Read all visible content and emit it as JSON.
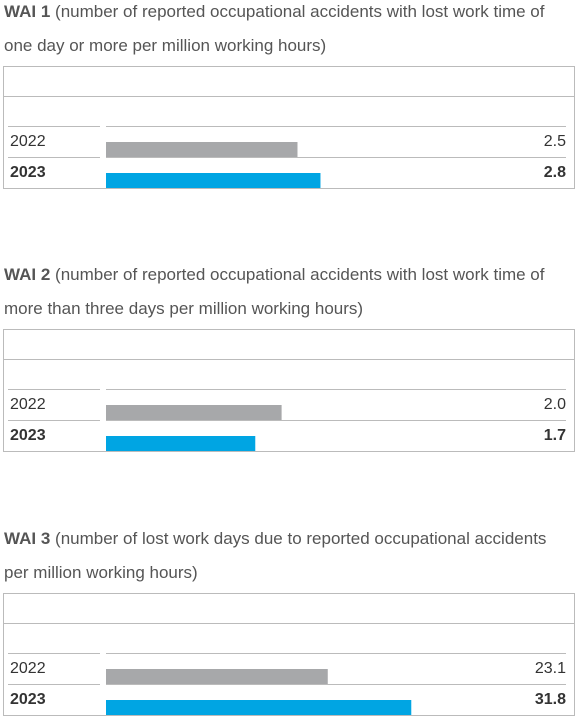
{
  "chart_data": [
    {
      "type": "bar",
      "title": "WAI 1",
      "subtitle": "(number of reported occupational accidents with lost work time of one day or more per million working hours)",
      "categories": [
        "2022",
        "2023"
      ],
      "values": [
        2.5,
        2.8
      ],
      "value_labels": [
        "2.5",
        "2.8"
      ],
      "colors": [
        "#a7a8aa",
        "#00a5e3"
      ],
      "xlim": [
        0,
        4.7
      ]
    },
    {
      "type": "bar",
      "title": "WAI 2",
      "subtitle": "(number of reported occupational accidents with lost work time of more than three days per million working hours)",
      "categories": [
        "2022",
        "2023"
      ],
      "values": [
        2.0,
        1.7
      ],
      "value_labels": [
        "2.0",
        "1.7"
      ],
      "colors": [
        "#a7a8aa",
        "#00a5e3"
      ],
      "xlim": [
        0,
        4.1
      ]
    },
    {
      "type": "bar",
      "title": "WAI 3",
      "subtitle": "(number of lost work days due to reported occupational accidents per million working hours)",
      "categories": [
        "2022",
        "2023"
      ],
      "values": [
        23.1,
        31.8
      ],
      "value_labels": [
        "23.1",
        "31.8"
      ],
      "colors": [
        "#a7a8aa",
        "#00a5e3"
      ],
      "xlim": [
        0,
        37.5
      ]
    }
  ]
}
